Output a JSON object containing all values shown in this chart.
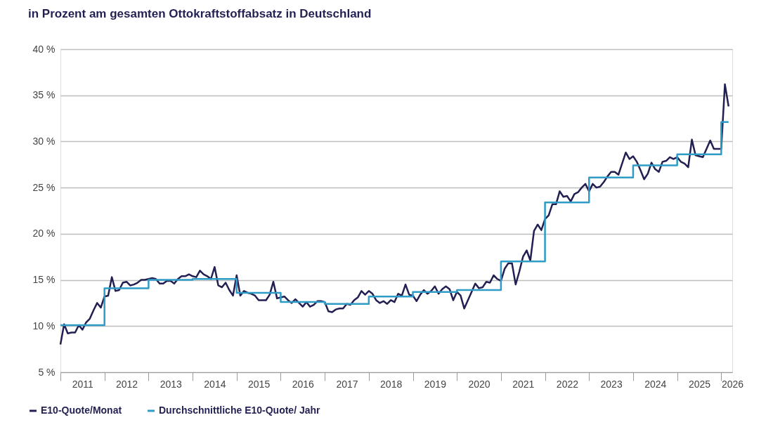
{
  "chart_data": {
    "type": "line",
    "title": "in Prozent am gesamten Ottokraftstoffabsatz in Deutschland",
    "xlim": [
      "2011-01",
      "2026-04"
    ],
    "xticks": [
      {
        "value": "2011-01",
        "label": null
      },
      {
        "value": "2011-07",
        "label": "2011"
      },
      {
        "value": "2012-01",
        "label": null
      },
      {
        "value": "2012-07",
        "label": "2012"
      },
      {
        "value": "2013-01",
        "label": null
      },
      {
        "value": "2013-07",
        "label": "2013"
      },
      {
        "value": "2014-01",
        "label": null
      },
      {
        "value": "2014-07",
        "label": "2014"
      },
      {
        "value": "2015-01",
        "label": null
      },
      {
        "value": "2015-07",
        "label": "2015"
      },
      {
        "value": "2016-01",
        "label": null
      },
      {
        "value": "2016-07",
        "label": "2016"
      },
      {
        "value": "2017-01",
        "label": null
      },
      {
        "value": "2017-07",
        "label": "2017"
      },
      {
        "value": "2018-01",
        "label": null
      },
      {
        "value": "2018-07",
        "label": "2018"
      },
      {
        "value": "2019-01",
        "label": null
      },
      {
        "value": "2019-07",
        "label": "2019"
      },
      {
        "value": "2020-01",
        "label": null
      },
      {
        "value": "2020-07",
        "label": "2020"
      },
      {
        "value": "2021-01",
        "label": null
      },
      {
        "value": "2021-07",
        "label": "2021"
      },
      {
        "value": "2022-01",
        "label": null
      },
      {
        "value": "2022-07",
        "label": "2022"
      },
      {
        "value": "2023-01",
        "label": null
      },
      {
        "value": "2023-07",
        "label": "2023"
      },
      {
        "value": "2024-01",
        "label": null
      },
      {
        "value": "2024-07",
        "label": "2024"
      },
      {
        "value": "2025-01",
        "label": null
      },
      {
        "value": "2025-07",
        "label": "2025"
      },
      {
        "value": "2026-01",
        "label": null
      },
      {
        "value": "2026-04",
        "label": "2026"
      }
    ],
    "ylim": [
      5,
      40
    ],
    "yticks": [
      {
        "value": 5,
        "label": "5 %"
      },
      {
        "value": 10,
        "label": "10 %"
      },
      {
        "value": 15,
        "label": "15 %"
      },
      {
        "value": 20,
        "label": "20 %"
      },
      {
        "value": 25,
        "label": "25 %"
      },
      {
        "value": 30,
        "label": "30 %"
      },
      {
        "value": 35,
        "label": "35 %"
      },
      {
        "value": 40,
        "label": "40 %"
      }
    ],
    "grid": "y",
    "legend": "bottom",
    "series": [
      {
        "name": "E10-Quote/Monat",
        "type": "line",
        "color": "#221f52",
        "x": [
          "2011-01",
          "2011-02",
          "2011-03",
          "2011-04",
          "2011-05",
          "2011-06",
          "2011-07",
          "2011-08",
          "2011-09",
          "2011-10",
          "2011-11",
          "2011-12",
          "2012-01",
          "2012-02",
          "2012-03",
          "2012-04",
          "2012-05",
          "2012-06",
          "2012-07",
          "2012-08",
          "2012-09",
          "2012-10",
          "2012-11",
          "2012-12",
          "2013-01",
          "2013-02",
          "2013-03",
          "2013-04",
          "2013-05",
          "2013-06",
          "2013-07",
          "2013-08",
          "2013-09",
          "2013-10",
          "2013-11",
          "2013-12",
          "2014-01",
          "2014-02",
          "2014-03",
          "2014-04",
          "2014-05",
          "2014-06",
          "2014-07",
          "2014-08",
          "2014-09",
          "2014-10",
          "2014-11",
          "2014-12",
          "2015-01",
          "2015-02",
          "2015-03",
          "2015-04",
          "2015-05",
          "2015-06",
          "2015-07",
          "2015-08",
          "2015-09",
          "2015-10",
          "2015-11",
          "2015-12",
          "2016-01",
          "2016-02",
          "2016-03",
          "2016-04",
          "2016-05",
          "2016-06",
          "2016-07",
          "2016-08",
          "2016-09",
          "2016-10",
          "2016-11",
          "2016-12",
          "2017-01",
          "2017-02",
          "2017-03",
          "2017-04",
          "2017-05",
          "2017-06",
          "2017-07",
          "2017-08",
          "2017-09",
          "2017-10",
          "2017-11",
          "2017-12",
          "2018-01",
          "2018-02",
          "2018-03",
          "2018-04",
          "2018-05",
          "2018-06",
          "2018-07",
          "2018-08",
          "2018-09",
          "2018-10",
          "2018-11",
          "2018-12",
          "2019-01",
          "2019-02",
          "2019-03",
          "2019-04",
          "2019-05",
          "2019-06",
          "2019-07",
          "2019-08",
          "2019-09",
          "2019-10",
          "2019-11",
          "2019-12",
          "2020-01",
          "2020-02",
          "2020-03",
          "2020-04",
          "2020-05",
          "2020-06",
          "2020-07",
          "2020-08",
          "2020-09",
          "2020-10",
          "2020-11",
          "2020-12",
          "2021-01",
          "2021-02",
          "2021-03",
          "2021-04",
          "2021-05",
          "2021-06",
          "2021-07",
          "2021-08",
          "2021-09",
          "2021-10",
          "2021-11",
          "2021-12",
          "2022-01",
          "2022-02",
          "2022-03",
          "2022-04",
          "2022-05",
          "2022-06",
          "2022-07",
          "2022-08",
          "2022-09",
          "2022-10",
          "2022-11",
          "2022-12",
          "2023-01",
          "2023-02",
          "2023-03",
          "2023-04",
          "2023-05",
          "2023-06",
          "2023-07",
          "2023-08",
          "2023-09",
          "2023-10",
          "2023-11",
          "2023-12",
          "2024-01",
          "2024-02",
          "2024-03",
          "2024-04",
          "2024-05",
          "2024-06",
          "2024-07",
          "2024-08",
          "2024-09",
          "2024-10",
          "2024-11",
          "2024-12",
          "2025-01",
          "2025-02",
          "2025-03",
          "2025-04",
          "2025-05",
          "2025-06",
          "2025-07",
          "2025-08",
          "2025-09",
          "2025-10",
          "2025-11",
          "2025-12",
          "2026-01",
          "2026-02",
          "2026-03"
        ],
        "values": [
          8.0,
          10.2,
          9.2,
          9.3,
          9.3,
          10.1,
          9.6,
          10.4,
          10.8,
          11.7,
          12.5,
          12.0,
          13.2,
          13.3,
          15.3,
          13.8,
          13.9,
          14.7,
          14.8,
          14.4,
          14.5,
          14.7,
          15.0,
          15.0,
          15.1,
          15.2,
          15.1,
          14.6,
          14.6,
          14.9,
          14.9,
          14.6,
          15.1,
          15.4,
          15.4,
          15.6,
          15.4,
          15.3,
          16.0,
          15.6,
          15.4,
          15.1,
          16.4,
          14.4,
          14.2,
          14.7,
          13.9,
          13.3,
          15.5,
          13.3,
          13.8,
          13.6,
          13.5,
          13.3,
          12.8,
          12.8,
          12.8,
          13.4,
          14.8,
          13.0,
          13.1,
          13.2,
          12.8,
          12.5,
          12.9,
          12.5,
          12.1,
          12.6,
          12.1,
          12.3,
          12.7,
          12.7,
          12.6,
          11.6,
          11.5,
          11.8,
          11.9,
          11.9,
          12.4,
          12.3,
          12.8,
          13.1,
          13.8,
          13.4,
          13.8,
          13.5,
          12.8,
          12.5,
          12.7,
          12.4,
          12.8,
          12.6,
          13.5,
          13.3,
          14.5,
          13.4,
          13.3,
          12.7,
          13.4,
          13.9,
          13.5,
          13.8,
          14.3,
          13.5,
          14.0,
          14.3,
          14.0,
          12.8,
          13.7,
          13.3,
          11.9,
          12.8,
          13.7,
          14.6,
          14.1,
          14.2,
          14.8,
          14.7,
          15.5,
          15.1,
          14.9,
          16.2,
          16.8,
          16.8,
          14.5,
          15.9,
          17.5,
          18.2,
          17.1,
          20.3,
          21.0,
          20.4,
          21.6,
          22.0,
          23.2,
          23.2,
          24.6,
          24.0,
          24.1,
          23.5,
          24.3,
          24.5,
          25.0,
          25.4,
          24.6,
          25.4,
          25.0,
          25.1,
          25.6,
          26.2,
          26.7,
          26.7,
          26.4,
          27.6,
          28.8,
          28.1,
          28.4,
          27.8,
          26.9,
          25.9,
          26.5,
          27.7,
          27.0,
          26.7,
          27.8,
          27.9,
          28.3,
          28.1,
          28.3,
          27.8,
          27.6,
          27.2,
          30.2,
          28.5,
          28.4,
          28.3,
          29.2,
          30.1,
          29.2,
          29.2,
          29.2,
          36.2,
          33.8
        ]
      },
      {
        "name": "Durchschnittliche E10-Quote/ Jahr",
        "type": "step",
        "color": "#2e9cc6",
        "x": [
          "2011-01",
          "2012-01",
          "2013-01",
          "2014-01",
          "2015-01",
          "2016-01",
          "2017-01",
          "2018-01",
          "2019-01",
          "2020-01",
          "2021-01",
          "2022-01",
          "2023-01",
          "2024-01",
          "2025-01",
          "2026-01",
          "2026-03"
        ],
        "values": [
          10.1,
          14.1,
          15.0,
          15.1,
          13.6,
          12.6,
          12.4,
          13.2,
          13.7,
          13.9,
          17.0,
          23.4,
          26.1,
          27.4,
          28.6,
          32.1,
          32.1
        ]
      }
    ]
  }
}
